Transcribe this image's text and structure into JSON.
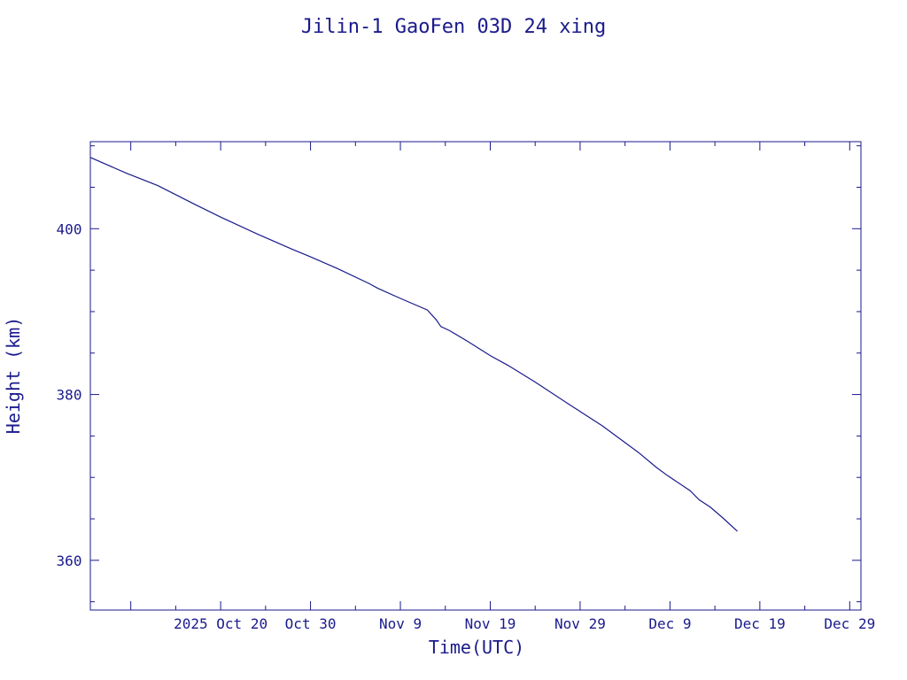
{
  "chart_data": {
    "type": "line",
    "title": "Jilin-1 GaoFen 03D 24 xing",
    "xlabel": "Time(UTC)",
    "ylabel": "Height (km)",
    "x_axis": {
      "kind": "date",
      "range": [
        "2025-10-05T12:00",
        "2025-12-30T06:00"
      ],
      "major_ticks": [
        {
          "date": "2025-10-10",
          "label": ""
        },
        {
          "date": "2025-10-20",
          "label": "2025 Oct 20"
        },
        {
          "date": "2025-10-30",
          "label": "Oct 30"
        },
        {
          "date": "2025-11-09",
          "label": "Nov  9"
        },
        {
          "date": "2025-11-19",
          "label": "Nov 19"
        },
        {
          "date": "2025-11-29",
          "label": "Nov 29"
        },
        {
          "date": "2025-12-09",
          "label": "Dec  9"
        },
        {
          "date": "2025-12-19",
          "label": "Dec 19"
        },
        {
          "date": "2025-12-29",
          "label": "Dec 29"
        }
      ]
    },
    "y_axis": {
      "range": [
        354.0,
        410.5
      ],
      "major_ticks": [
        360,
        380,
        400
      ],
      "minor_ticks": [
        355,
        365,
        370,
        375,
        385,
        390,
        395,
        405,
        410
      ]
    },
    "grid": false,
    "legend": "none",
    "series": [
      {
        "x": [
          "2025-10-05T12:00",
          "2025-10-09T12:00",
          "2025-10-13T00:00",
          "2025-10-17T00:00",
          "2025-10-20T00:00",
          "2025-10-24T00:00",
          "2025-10-28T00:00",
          "2025-10-30T00:00",
          "2025-11-02T00:00",
          "2025-11-05T12:00",
          "2025-11-06T12:00",
          "2025-11-09T00:00",
          "2025-11-12T00:00",
          "2025-11-13T00:00",
          "2025-11-13T12:00",
          "2025-11-14T12:00",
          "2025-11-16T12:00",
          "2025-11-19T00:00",
          "2025-11-21T00:00",
          "2025-11-24T00:00",
          "2025-11-27T12:00",
          "2025-11-29T12:00",
          "2025-12-01T12:00",
          "2025-12-03T12:00",
          "2025-12-05T12:00",
          "2025-12-07T12:00",
          "2025-12-08T18:00",
          "2025-12-11T06:00",
          "2025-12-12T06:00",
          "2025-12-13T12:00",
          "2025-12-15T00:00",
          "2025-12-16T12:00"
        ],
        "y": [
          408.6,
          406.7,
          405.2,
          403.0,
          401.4,
          399.4,
          397.5,
          396.6,
          395.2,
          393.4,
          392.8,
          391.6,
          390.2,
          389.0,
          388.2,
          387.7,
          386.4,
          384.7,
          383.5,
          381.5,
          379.0,
          377.6,
          376.2,
          374.6,
          373.0,
          371.2,
          370.2,
          368.4,
          367.3,
          366.4,
          365.0,
          363.5
        ]
      }
    ]
  }
}
